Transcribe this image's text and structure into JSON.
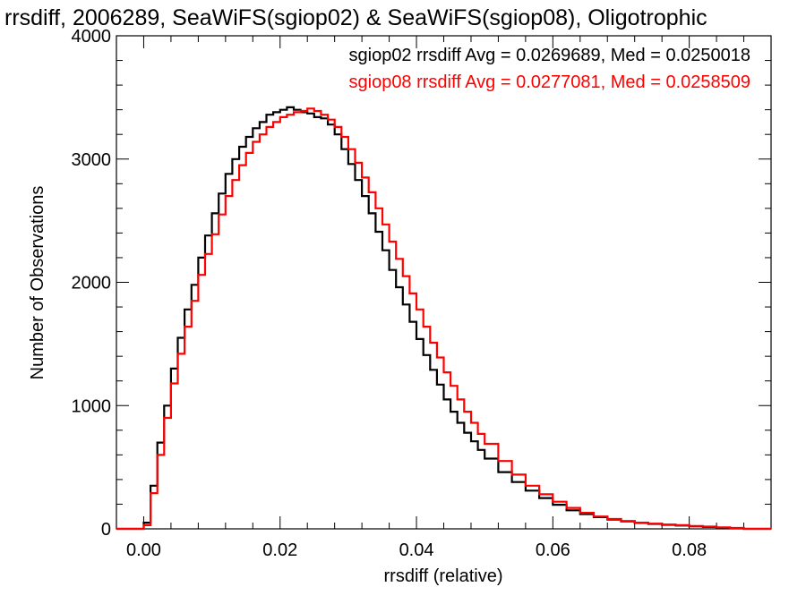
{
  "chart_data": {
    "type": "line",
    "title": "rrsdiff, 2006289, SeaWiFS(sgiop02) & SeaWiFS(sgiop08), Oligotrophic",
    "xlabel": "rrsdiff (relative)",
    "ylabel": "Number of Observations",
    "xlim": [
      -0.004,
      0.092
    ],
    "ylim": [
      0,
      4000
    ],
    "x_ticks": [
      "0.00",
      "0.02",
      "0.04",
      "0.06",
      "0.08"
    ],
    "y_ticks": [
      "0",
      "1000",
      "2000",
      "3000",
      "4000"
    ],
    "grid": false,
    "legend_position": "top-right",
    "x": [
      -0.004,
      -0.002,
      0.0,
      0.001,
      0.002,
      0.003,
      0.004,
      0.005,
      0.006,
      0.007,
      0.008,
      0.009,
      0.01,
      0.011,
      0.012,
      0.013,
      0.014,
      0.015,
      0.016,
      0.017,
      0.018,
      0.019,
      0.02,
      0.021,
      0.022,
      0.023,
      0.024,
      0.025,
      0.026,
      0.027,
      0.028,
      0.029,
      0.03,
      0.031,
      0.032,
      0.033,
      0.034,
      0.035,
      0.036,
      0.037,
      0.038,
      0.039,
      0.04,
      0.041,
      0.042,
      0.043,
      0.044,
      0.045,
      0.046,
      0.047,
      0.048,
      0.049,
      0.05,
      0.052,
      0.054,
      0.056,
      0.058,
      0.06,
      0.062,
      0.064,
      0.066,
      0.068,
      0.07,
      0.072,
      0.074,
      0.076,
      0.078,
      0.08,
      0.082,
      0.084,
      0.086,
      0.088,
      0.09,
      0.092
    ],
    "series": [
      {
        "name": "sgiop02",
        "color": "#000000",
        "legend_label": "sgiop02 rrsdiff Avg = 0.0269689, Med = 0.0250018",
        "values": [
          0,
          0,
          50,
          350,
          700,
          1000,
          1300,
          1550,
          1780,
          1980,
          2200,
          2380,
          2560,
          2720,
          2880,
          3000,
          3100,
          3180,
          3250,
          3300,
          3360,
          3380,
          3400,
          3420,
          3400,
          3380,
          3370,
          3340,
          3330,
          3280,
          3200,
          3080,
          2960,
          2830,
          2700,
          2560,
          2410,
          2260,
          2100,
          1960,
          1820,
          1680,
          1540,
          1410,
          1290,
          1170,
          1050,
          950,
          860,
          780,
          710,
          640,
          570,
          460,
          380,
          310,
          250,
          195,
          150,
          120,
          95,
          75,
          60,
          48,
          40,
          33,
          27,
          20,
          15,
          10,
          5,
          0,
          0,
          0
        ]
      },
      {
        "name": "sgiop08",
        "color": "#ff0000",
        "legend_label": "sgiop08 rrsdiff Avg = 0.0277081, Med = 0.0258509",
        "values": [
          0,
          0,
          30,
          290,
          600,
          900,
          1180,
          1420,
          1640,
          1850,
          2060,
          2230,
          2390,
          2550,
          2700,
          2830,
          2950,
          3050,
          3140,
          3200,
          3260,
          3300,
          3340,
          3360,
          3380,
          3390,
          3410,
          3390,
          3360,
          3320,
          3260,
          3180,
          3080,
          2970,
          2850,
          2730,
          2600,
          2470,
          2330,
          2190,
          2050,
          1910,
          1780,
          1640,
          1510,
          1390,
          1270,
          1160,
          1050,
          950,
          860,
          770,
          690,
          550,
          440,
          350,
          280,
          220,
          170,
          130,
          100,
          80,
          64,
          50,
          42,
          35,
          30,
          23,
          18,
          12,
          7,
          0,
          0,
          0
        ]
      }
    ]
  }
}
